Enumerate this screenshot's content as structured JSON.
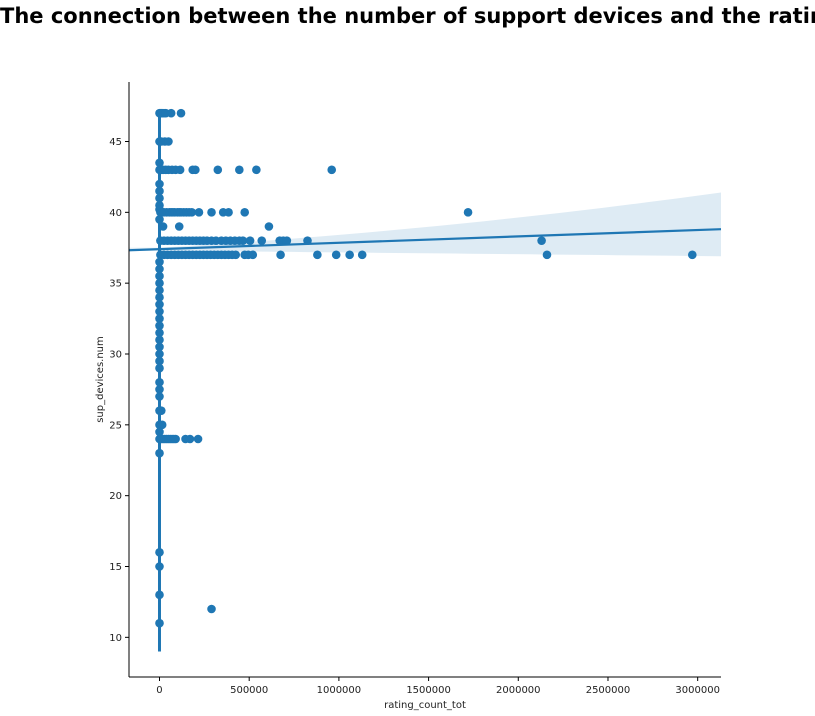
{
  "chart_data": {
    "type": "scatter",
    "title": "The connection between the number of support devices and the rating",
    "xlabel": "rating_count_tot",
    "ylabel": "sup_devices.num",
    "xlim": [
      -170000,
      3130000
    ],
    "ylim": [
      7.2,
      49.2
    ],
    "xticks": [
      0,
      500000,
      1000000,
      1500000,
      2000000,
      2500000,
      3000000
    ],
    "yticks": [
      10,
      15,
      20,
      25,
      30,
      35,
      40,
      45
    ],
    "grid": false,
    "legend": "none",
    "colors": {
      "points": "#1f77b4",
      "line": "#1f77b4",
      "band": "#1f77b4"
    },
    "regression": {
      "slope": 4.5e-07,
      "intercept": 37.4,
      "ci_at_max_x": [
        36.9,
        41.4
      ],
      "ci_at_zero": [
        37.3,
        37.5
      ]
    },
    "points": [
      [
        0,
        47
      ],
      [
        5000,
        47
      ],
      [
        10000,
        47
      ],
      [
        15000,
        47
      ],
      [
        25000,
        47
      ],
      [
        35000,
        47
      ],
      [
        65000,
        47
      ],
      [
        120000,
        47
      ],
      [
        0,
        45
      ],
      [
        10000,
        45
      ],
      [
        30000,
        45
      ],
      [
        50000,
        45
      ],
      [
        0,
        43.5
      ],
      [
        0,
        43
      ],
      [
        10000,
        43
      ],
      [
        20000,
        43
      ],
      [
        35000,
        43
      ],
      [
        50000,
        43
      ],
      [
        70000,
        43
      ],
      [
        90000,
        43
      ],
      [
        115000,
        43
      ],
      [
        185000,
        43
      ],
      [
        200000,
        43
      ],
      [
        325000,
        43
      ],
      [
        445000,
        43
      ],
      [
        540000,
        43
      ],
      [
        960000,
        43
      ],
      [
        0,
        42
      ],
      [
        0,
        41.5
      ],
      [
        0,
        41
      ],
      [
        0,
        40.5
      ],
      [
        0,
        40.2
      ],
      [
        5000,
        40
      ],
      [
        15000,
        40
      ],
      [
        25000,
        40
      ],
      [
        40000,
        40
      ],
      [
        55000,
        40
      ],
      [
        65000,
        40
      ],
      [
        75000,
        40
      ],
      [
        85000,
        40
      ],
      [
        100000,
        40
      ],
      [
        110000,
        40
      ],
      [
        120000,
        40
      ],
      [
        135000,
        40
      ],
      [
        150000,
        40
      ],
      [
        165000,
        40
      ],
      [
        180000,
        40
      ],
      [
        220000,
        40
      ],
      [
        290000,
        40
      ],
      [
        355000,
        40
      ],
      [
        385000,
        40
      ],
      [
        475000,
        40
      ],
      [
        1720000,
        40
      ],
      [
        0,
        39.5
      ],
      [
        20000,
        39
      ],
      [
        110000,
        39
      ],
      [
        610000,
        39
      ],
      [
        5000,
        38
      ],
      [
        25000,
        38
      ],
      [
        45000,
        38
      ],
      [
        65000,
        38
      ],
      [
        85000,
        38
      ],
      [
        105000,
        38
      ],
      [
        125000,
        38
      ],
      [
        145000,
        38
      ],
      [
        165000,
        38
      ],
      [
        185000,
        38
      ],
      [
        205000,
        38
      ],
      [
        225000,
        38
      ],
      [
        245000,
        38
      ],
      [
        265000,
        38
      ],
      [
        290000,
        38
      ],
      [
        315000,
        38
      ],
      [
        345000,
        38
      ],
      [
        370000,
        38
      ],
      [
        395000,
        38
      ],
      [
        420000,
        38
      ],
      [
        445000,
        38
      ],
      [
        465000,
        38
      ],
      [
        505000,
        38
      ],
      [
        570000,
        38
      ],
      [
        670000,
        38
      ],
      [
        690000,
        38
      ],
      [
        710000,
        38
      ],
      [
        825000,
        38
      ],
      [
        2130000,
        38
      ],
      [
        5000,
        37
      ],
      [
        25000,
        37
      ],
      [
        45000,
        37
      ],
      [
        65000,
        37
      ],
      [
        85000,
        37
      ],
      [
        105000,
        37
      ],
      [
        125000,
        37
      ],
      [
        145000,
        37
      ],
      [
        165000,
        37
      ],
      [
        185000,
        37
      ],
      [
        205000,
        37
      ],
      [
        225000,
        37
      ],
      [
        245000,
        37
      ],
      [
        265000,
        37
      ],
      [
        285000,
        37
      ],
      [
        305000,
        37
      ],
      [
        325000,
        37
      ],
      [
        345000,
        37
      ],
      [
        365000,
        37
      ],
      [
        385000,
        37
      ],
      [
        405000,
        37
      ],
      [
        425000,
        37
      ],
      [
        475000,
        37
      ],
      [
        495000,
        37
      ],
      [
        520000,
        37
      ],
      [
        675000,
        37
      ],
      [
        880000,
        37
      ],
      [
        985000,
        37
      ],
      [
        1060000,
        37
      ],
      [
        1130000,
        37
      ],
      [
        2160000,
        37
      ],
      [
        2970000,
        37
      ],
      [
        0,
        36.5
      ],
      [
        0,
        36
      ],
      [
        0,
        35.5
      ],
      [
        0,
        35
      ],
      [
        0,
        34.5
      ],
      [
        0,
        34
      ],
      [
        0,
        33.5
      ],
      [
        0,
        33
      ],
      [
        0,
        32.5
      ],
      [
        0,
        32
      ],
      [
        0,
        31.5
      ],
      [
        0,
        31
      ],
      [
        0,
        30.5
      ],
      [
        0,
        30
      ],
      [
        0,
        29.5
      ],
      [
        0,
        29
      ],
      [
        0,
        28
      ],
      [
        0,
        27.5
      ],
      [
        0,
        27
      ],
      [
        0,
        26
      ],
      [
        10000,
        26
      ],
      [
        0,
        25
      ],
      [
        15000,
        25
      ],
      [
        0,
        24.5
      ],
      [
        0,
        24
      ],
      [
        10000,
        24
      ],
      [
        20000,
        24
      ],
      [
        30000,
        24
      ],
      [
        40000,
        24
      ],
      [
        50000,
        24
      ],
      [
        60000,
        24
      ],
      [
        70000,
        24
      ],
      [
        80000,
        24
      ],
      [
        90000,
        24
      ],
      [
        145000,
        24
      ],
      [
        170000,
        24
      ],
      [
        215000,
        24
      ],
      [
        0,
        23
      ],
      [
        0,
        16
      ],
      [
        0,
        15
      ],
      [
        0,
        13
      ],
      [
        290000,
        12
      ],
      [
        0,
        11
      ]
    ]
  }
}
